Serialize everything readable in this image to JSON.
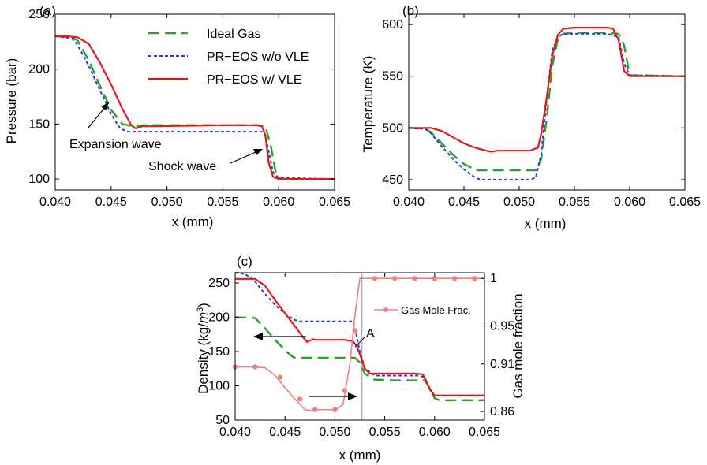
{
  "colors": {
    "ideal": "#2ca02c",
    "pr_novle": "#1f3fd6",
    "pr_vle": "#e31a1c",
    "gas_frac": "#f08080",
    "marker_line": "#aaaaaa"
  },
  "legend": {
    "ideal": "Ideal Gas",
    "pr_novle": "PR−EOS w/o VLE",
    "pr_vle": "PR−EOS w/ VLE",
    "gas_frac": "Gas Mole Frac."
  },
  "chart_data": [
    {
      "panel": "(a)",
      "type": "line",
      "xlabel": "x (mm)",
      "ylabel": "Pressure (bar)",
      "xlim": [
        0.04,
        0.065
      ],
      "ylim": [
        90,
        250
      ],
      "xticks": [
        "0.040",
        "0.045",
        "0.050",
        "0.055",
        "0.060",
        "0.065"
      ],
      "yticks": [
        "100",
        "150",
        "200",
        "250"
      ],
      "legend_position": "top-center",
      "annotations": [
        "Expansion wave",
        "Shock wave"
      ],
      "series": [
        {
          "key": "ideal",
          "style": "dashed",
          "x": [
            0.04,
            0.0415,
            0.042,
            0.043,
            0.044,
            0.045,
            0.046,
            0.047,
            0.048,
            0.05,
            0.055,
            0.058,
            0.0588,
            0.0593,
            0.0598,
            0.0605,
            0.065
          ],
          "y": [
            230,
            229,
            226,
            208,
            185,
            163,
            150,
            148,
            149,
            149,
            149,
            149,
            148,
            130,
            102,
            100,
            100
          ]
        },
        {
          "key": "pr_novle",
          "style": "dotted",
          "x": [
            0.04,
            0.0415,
            0.042,
            0.043,
            0.044,
            0.045,
            0.0458,
            0.0465,
            0.048,
            0.055,
            0.0585,
            0.0588,
            0.0591,
            0.0595,
            0.06,
            0.065
          ],
          "y": [
            230,
            228,
            222,
            203,
            181,
            159,
            146,
            143,
            143,
            143,
            143,
            140,
            125,
            106,
            101,
            100
          ]
        },
        {
          "key": "pr_vle",
          "style": "solid",
          "x": [
            0.04,
            0.041,
            0.042,
            0.043,
            0.044,
            0.045,
            0.046,
            0.0468,
            0.0472,
            0.0478,
            0.049,
            0.055,
            0.058,
            0.0585,
            0.0588,
            0.0591,
            0.0595,
            0.06,
            0.065
          ],
          "y": [
            230,
            230,
            229,
            223,
            206,
            186,
            164,
            149,
            146,
            148,
            148,
            149,
            149,
            148,
            140,
            115,
            102,
            100,
            100
          ]
        }
      ]
    },
    {
      "panel": "(b)",
      "type": "line",
      "xlabel": "x (mm)",
      "ylabel": "Temperature (K)",
      "xlim": [
        0.04,
        0.065
      ],
      "ylim": [
        440,
        610
      ],
      "xticks": [
        "0.040",
        "0.045",
        "0.050",
        "0.055",
        "0.060",
        "0.065"
      ],
      "yticks": [
        "450",
        "500",
        "550",
        "600"
      ],
      "series": [
        {
          "key": "ideal",
          "style": "dashed",
          "x": [
            0.04,
            0.0415,
            0.042,
            0.043,
            0.044,
            0.045,
            0.0462,
            0.048,
            0.0515,
            0.052,
            0.0525,
            0.053,
            0.0535,
            0.054,
            0.055,
            0.058,
            0.059,
            0.0595,
            0.06,
            0.065
          ],
          "y": [
            500,
            499,
            496,
            485,
            474,
            465,
            459,
            459,
            459,
            470,
            510,
            560,
            586,
            591,
            592,
            592,
            591,
            580,
            551,
            550
          ]
        },
        {
          "key": "pr_novle",
          "style": "dotted",
          "x": [
            0.04,
            0.0415,
            0.042,
            0.043,
            0.044,
            0.045,
            0.046,
            0.0465,
            0.051,
            0.0515,
            0.052,
            0.0525,
            0.053,
            0.0535,
            0.054,
            0.055,
            0.058,
            0.059,
            0.0595,
            0.06,
            0.065
          ],
          "y": [
            500,
            499,
            495,
            482,
            470,
            460,
            452,
            450,
            450,
            452,
            475,
            530,
            575,
            588,
            591,
            591,
            591,
            588,
            562,
            551,
            550
          ]
        },
        {
          "key": "pr_vle",
          "style": "solid",
          "x": [
            0.04,
            0.042,
            0.043,
            0.044,
            0.045,
            0.046,
            0.047,
            0.0475,
            0.048,
            0.051,
            0.0517,
            0.052,
            0.0525,
            0.053,
            0.0535,
            0.054,
            0.055,
            0.058,
            0.0585,
            0.059,
            0.0595,
            0.06,
            0.065
          ],
          "y": [
            500,
            500,
            497,
            491,
            485,
            481,
            478,
            477,
            478,
            478,
            481,
            495,
            530,
            570,
            590,
            596,
            597,
            597,
            596,
            585,
            555,
            550,
            550
          ]
        }
      ]
    },
    {
      "panel": "(c)",
      "type": "line",
      "xlabel": "x (mm)",
      "ylabel": "Density (kg/m³)",
      "y2label": "Gas mole fraction",
      "xlim": [
        0.04,
        0.065
      ],
      "ylim": [
        50,
        265
      ],
      "y2lim": [
        0.851,
        1.006
      ],
      "xticks": [
        "0.040",
        "0.045",
        "0.050",
        "0.055",
        "0.060",
        "0.065"
      ],
      "yticks": [
        "50",
        "100",
        "150",
        "200",
        "250"
      ],
      "y2ticks": [
        "0.86",
        "0.91",
        "0.95",
        "1"
      ],
      "annotations": [
        "A"
      ],
      "marker_x": 0.0527,
      "series": [
        {
          "key": "ideal",
          "style": "dashed",
          "axis": "left",
          "x": [
            0.04,
            0.042,
            0.043,
            0.044,
            0.045,
            0.0458,
            0.046,
            0.052,
            0.0525,
            0.053,
            0.054,
            0.056,
            0.0585,
            0.059,
            0.0595,
            0.06,
            0.0605,
            0.065
          ],
          "y": [
            200,
            199,
            184,
            167,
            152,
            142,
            141,
            141,
            134,
            118,
            109,
            108,
            108,
            108,
            97,
            82,
            79,
            79
          ]
        },
        {
          "key": "pr_novle",
          "style": "dotted",
          "axis": "left",
          "x": [
            0.04,
            0.041,
            0.042,
            0.043,
            0.044,
            0.045,
            0.046,
            0.0465,
            0.0518,
            0.052,
            0.0525,
            0.053,
            0.054,
            0.056,
            0.0585,
            0.059,
            0.0595,
            0.06,
            0.065
          ],
          "y": [
            265,
            263,
            252,
            234,
            218,
            205,
            196,
            194,
            194,
            185,
            150,
            126,
            115,
            115,
            115,
            112,
            96,
            86,
            86
          ]
        },
        {
          "key": "pr_vle",
          "style": "solid",
          "axis": "left",
          "x": [
            0.04,
            0.042,
            0.043,
            0.044,
            0.045,
            0.046,
            0.0468,
            0.0472,
            0.0478,
            0.048,
            0.051,
            0.0518,
            0.0522,
            0.0526,
            0.053,
            0.0535,
            0.054,
            0.056,
            0.058,
            0.0588,
            0.059,
            0.0595,
            0.06,
            0.065
          ],
          "y": [
            256,
            256,
            246,
            225,
            206,
            187,
            171,
            164,
            168,
            167,
            167,
            165,
            158,
            142,
            125,
            118,
            118,
            118,
            118,
            117,
            112,
            95,
            86,
            86
          ]
        },
        {
          "key": "gas_frac",
          "style": "solid-markers",
          "axis": "right",
          "x": [
            0.04,
            0.042,
            0.043,
            0.044,
            0.045,
            0.046,
            0.047,
            0.0475,
            0.048,
            0.049,
            0.05,
            0.0508,
            0.051,
            0.0515,
            0.052,
            0.0525,
            0.053,
            0.065
          ],
          "y": [
            0.907,
            0.907,
            0.906,
            0.898,
            0.885,
            0.873,
            0.862,
            0.861,
            0.862,
            0.862,
            0.862,
            0.867,
            0.878,
            0.91,
            0.96,
            1.0,
            1.0,
            1.0
          ],
          "markers_x": [
            0.04,
            0.042,
            0.0445,
            0.0465,
            0.048,
            0.05,
            0.051,
            0.052,
            0.054,
            0.056,
            0.058,
            0.06,
            0.062,
            0.064
          ],
          "markers_y": [
            0.907,
            0.907,
            0.896,
            0.873,
            0.862,
            0.862,
            0.882,
            0.945,
            1.0,
            1.0,
            1.0,
            1.0,
            1.0,
            1.0
          ]
        }
      ]
    }
  ]
}
